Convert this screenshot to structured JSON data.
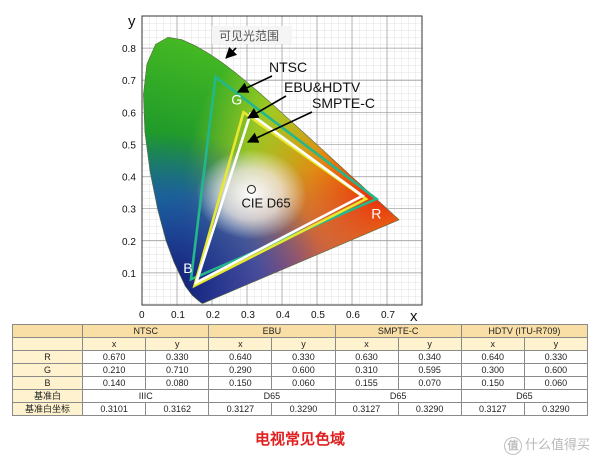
{
  "diagram": {
    "axis_x_label": "x",
    "axis_y_label": "y",
    "x_ticks": [
      "0",
      "0.1",
      "0.2",
      "0.3",
      "0.4",
      "0.5",
      "0.6",
      "0.7"
    ],
    "y_ticks": [
      "0.1",
      "0.2",
      "0.3",
      "0.4",
      "0.5",
      "0.6",
      "0.7",
      "0.8"
    ],
    "visible_range_label": "可见光范围",
    "white_point_label": "CIE D65",
    "legend": {
      "ntsc": "NTSC",
      "ebu": "EBU&HDTV",
      "smpte": "SMPTE-C"
    },
    "primary_labels": {
      "r": "R",
      "g": "G",
      "b": "B"
    },
    "colors": {
      "ntsc": "#23b88c",
      "ebu": "#e8e830",
      "smpte": "#ffffff",
      "arrow": "#000000"
    },
    "gamuts": {
      "ntsc": [
        [
          0.67,
          0.33
        ],
        [
          0.21,
          0.71
        ],
        [
          0.14,
          0.08
        ]
      ],
      "ebu": [
        [
          0.64,
          0.33
        ],
        [
          0.29,
          0.6
        ],
        [
          0.15,
          0.06
        ]
      ],
      "smpte": [
        [
          0.63,
          0.34
        ],
        [
          0.31,
          0.595
        ],
        [
          0.155,
          0.07
        ]
      ]
    },
    "white_point": [
      0.3127,
      0.329
    ]
  },
  "table": {
    "standards": [
      "NTSC",
      "EBU",
      "SMPTE-C",
      "HDTV (ITU-R709)"
    ],
    "coord_headers": [
      "x",
      "y"
    ],
    "rows": [
      {
        "label": "R",
        "values": [
          "0.670",
          "0.330",
          "0.640",
          "0.330",
          "0.630",
          "0.340",
          "0.640",
          "0.330"
        ]
      },
      {
        "label": "G",
        "values": [
          "0.210",
          "0.710",
          "0.290",
          "0.600",
          "0.310",
          "0.595",
          "0.300",
          "0.600"
        ]
      },
      {
        "label": "B",
        "values": [
          "0.140",
          "0.080",
          "0.150",
          "0.060",
          "0.155",
          "0.070",
          "0.150",
          "0.060"
        ]
      }
    ],
    "white_row": {
      "label": "基准白",
      "values": [
        "IIIC",
        "D65",
        "D65",
        "D65"
      ]
    },
    "white_coord_row": {
      "label": "基准白坐标",
      "values": [
        "0.3101",
        "0.3162",
        "0.3127",
        "0.3290",
        "0.3127",
        "0.3290",
        "0.3127",
        "0.3290"
      ]
    }
  },
  "caption": "电视常见色域",
  "watermark": "什么值得买"
}
